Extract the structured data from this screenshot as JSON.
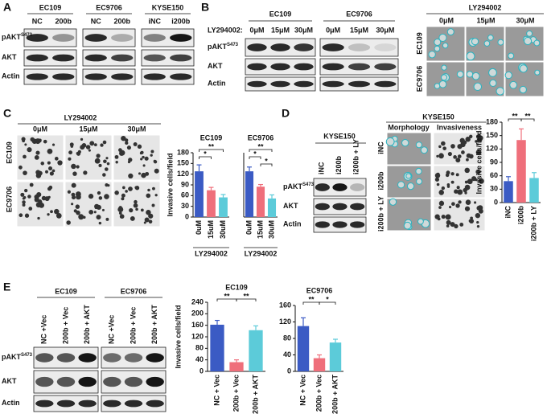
{
  "panel_letters": [
    "A",
    "B",
    "C",
    "D",
    "E"
  ],
  "A": {
    "groups": [
      "EC109",
      "EC9706",
      "KYSE150"
    ],
    "lanes": [
      [
        "NC",
        "200b"
      ],
      [
        "NC",
        "200b"
      ],
      [
        "iNC",
        "i200b"
      ]
    ],
    "proteins": [
      {
        "name": "pAKT",
        "sup": "S473"
      },
      {
        "name": "AKT"
      },
      {
        "name": "Actin"
      }
    ]
  },
  "B": {
    "treatment": "LY294002:",
    "groups": [
      "EC109",
      "EC9706"
    ],
    "lanes": [
      "0μM",
      "15μM",
      "30μM"
    ],
    "proteins": [
      {
        "name": "pAKT",
        "sup": "S473"
      },
      {
        "name": "AKT"
      },
      {
        "name": "Actin"
      }
    ],
    "images": {
      "title": "LY294002",
      "columns": [
        "0μM",
        "15μM",
        "30μM"
      ],
      "rows": [
        "EC109",
        "EC9706"
      ]
    }
  },
  "C": {
    "images": {
      "title": "LY294002",
      "columns": [
        "0μM",
        "15μM",
        "30μM"
      ],
      "rows": [
        "EC109",
        "EC9706"
      ]
    }
  },
  "D": {
    "blot": {
      "title": "KYSE150",
      "lanes": [
        "iNC",
        "i200b",
        "i200b + LY"
      ],
      "proteins": [
        {
          "name": "pAKT",
          "sup": "S473"
        },
        {
          "name": "AKT"
        },
        {
          "name": "Actin"
        }
      ]
    },
    "images": {
      "title": "KYSE150",
      "columns": [
        "Morphology",
        "Invasiveness"
      ],
      "rows": [
        "iNC",
        "i200b",
        "i200b + LY"
      ]
    }
  },
  "E": {
    "groups": [
      "EC109",
      "EC9706"
    ],
    "lanes": [
      "NC +Vec",
      "200b + Vec",
      "200b + AKT"
    ],
    "proteins": [
      {
        "name": "pAKT",
        "sup": "S473"
      },
      {
        "name": "AKT"
      },
      {
        "name": "Actin"
      }
    ]
  },
  "chart_data": [
    {
      "type": "bar",
      "title": "EC109",
      "y_label": "Invasive cells/field",
      "x_label": "LY294002",
      "categories": [
        "0uM",
        "15uM",
        "30uM"
      ],
      "values": [
        128,
        75,
        55
      ],
      "errors": [
        18,
        8,
        8
      ],
      "colors": [
        "#3b5bc4",
        "#ef6f7b",
        "#5ccbd9"
      ],
      "ylim": [
        0,
        180
      ],
      "yticks": [
        0,
        30,
        60,
        90,
        120,
        150,
        180
      ],
      "significance": [
        "**",
        "*"
      ]
    },
    {
      "type": "bar",
      "title": "EC9706",
      "x_label": "LY294002",
      "categories": [
        "0uM",
        "15uM",
        "30uM"
      ],
      "values": [
        128,
        85,
        52
      ],
      "errors": [
        12,
        6,
        10
      ],
      "colors": [
        "#3b5bc4",
        "#ef6f7b",
        "#5ccbd9"
      ],
      "ylim": [
        0,
        180
      ],
      "significance": [
        "**",
        "*",
        "*"
      ]
    },
    {
      "type": "bar",
      "y_label": "Invasive cells/field",
      "categories": [
        "iNC",
        "i200b",
        "i200b + LY"
      ],
      "values": [
        48,
        140,
        55
      ],
      "errors": [
        10,
        25,
        12
      ],
      "colors": [
        "#3b5bc4",
        "#ef6f7b",
        "#5ccbd9"
      ],
      "ylim": [
        0,
        180
      ],
      "yticks": [
        0,
        30,
        60,
        90,
        120,
        150,
        180
      ],
      "significance": [
        "**",
        "**"
      ]
    },
    {
      "type": "bar",
      "title": "EC109",
      "y_label": "Invasive cells/field",
      "categories": [
        "NC + Vec",
        "200b + Vec",
        "200b + AKT"
      ],
      "values": [
        162,
        32,
        143
      ],
      "errors": [
        15,
        8,
        15
      ],
      "colors": [
        "#3b5bc4",
        "#ef6f7b",
        "#5ccbd9"
      ],
      "ylim": [
        0,
        240
      ],
      "yticks": [
        0,
        40,
        80,
        120,
        160,
        200,
        240
      ],
      "significance": [
        "**",
        "**"
      ]
    },
    {
      "type": "bar",
      "title": "EC9706",
      "categories": [
        "NC + Vec",
        "200b + Vec",
        "200b + AKT"
      ],
      "values": [
        110,
        32,
        70
      ],
      "errors": [
        20,
        8,
        8
      ],
      "colors": [
        "#3b5bc4",
        "#ef6f7b",
        "#5ccbd9"
      ],
      "ylim": [
        0,
        160
      ],
      "yticks": [
        0,
        40,
        80,
        120,
        160
      ],
      "significance": [
        "**",
        "*"
      ]
    }
  ]
}
